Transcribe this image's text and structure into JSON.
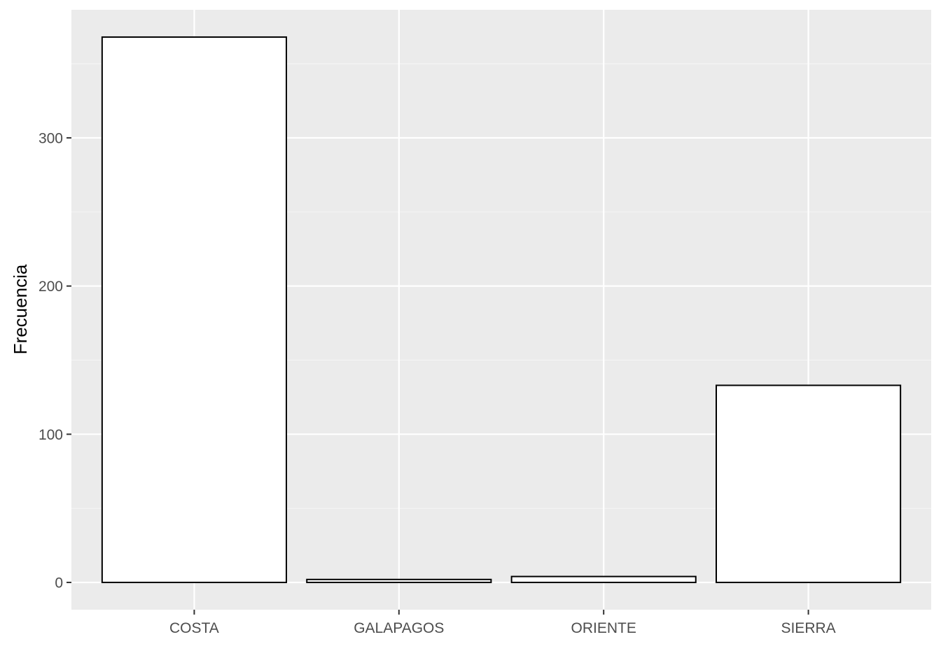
{
  "chart_data": {
    "type": "bar",
    "categories": [
      "COSTA",
      "GALAPAGOS",
      "ORIENTE",
      "SIERRA"
    ],
    "values": [
      368,
      2,
      4,
      133
    ],
    "xlabel": "",
    "ylabel": "Frecuencia",
    "ylim": [
      -18.4,
      386.4
    ],
    "yticks": [
      0,
      100,
      200,
      300
    ],
    "ytick_labels": [
      "0",
      "100",
      "200",
      "300"
    ],
    "grid": true,
    "theme": "ggplot2-gray",
    "colors": {
      "panel_background": "#ebebeb",
      "grid_major": "#ffffff",
      "grid_minor": "#f5f5f5",
      "bar_fill": "#ffffff",
      "bar_outline": "#000000",
      "tick_text": "#4d4d4d",
      "tick_mark": "#333333"
    }
  }
}
